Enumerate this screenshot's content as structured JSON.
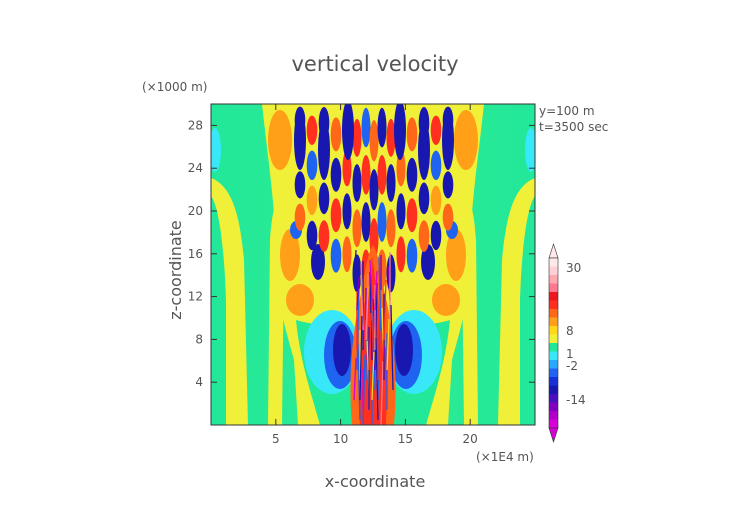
{
  "chart_data": {
    "type": "heatmap",
    "title": "vertical velocity",
    "xlabel": "x-coordinate",
    "ylabel": "z-coordinate",
    "x_unit": "(×1E4 m)",
    "y_unit": "(×1000 m)",
    "annotations": [
      "y=100 m",
      "t=3500 sec"
    ],
    "xlim": [
      0,
      25
    ],
    "ylim": [
      0,
      30
    ],
    "x_ticks": [
      5,
      10,
      15,
      20
    ],
    "y_ticks": [
      4,
      8,
      12,
      16,
      20,
      24,
      28
    ],
    "colorbar": {
      "labeled_ticks": [
        30,
        8,
        1,
        -2,
        -14
      ],
      "colors": [
        "#d800d8",
        "#b000c8",
        "#8000c0",
        "#4810c0",
        "#1818b0",
        "#1830d8",
        "#1e64f0",
        "#28a8ff",
        "#38e8f8",
        "#20e898",
        "#f0f038",
        "#ffd818",
        "#ffa018",
        "#ff6818",
        "#ff3020",
        "#f01820",
        "#ff7890",
        "#ffa8b0",
        "#ffd0d8",
        "#ffe8ea"
      ]
    },
    "grid": false,
    "legend": "none"
  }
}
